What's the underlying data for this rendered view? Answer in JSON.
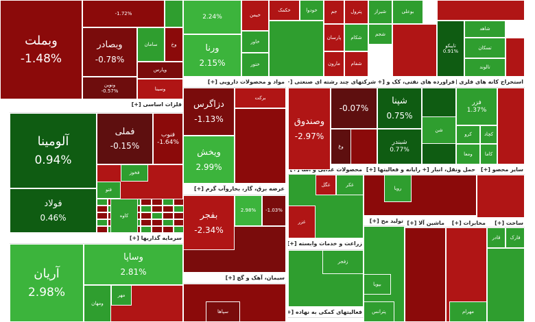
{
  "headers": [
    "فلزات اساسی [+]",
    "سرمایه گذاریها [+]",
    "مواد و محصولات دارویی [+]",
    "شرکتهای چند رشته ای صنعتی [+]",
    "فراورده های نفتی، کک و [+]",
    "استخراج کانه های فلزی [+]",
    "عرضه برق، گاز، بخاروآب گرم [+]",
    "محصولات غذایی و آشا [+]",
    "رایانه و فعالیتها [+]",
    "حمل ونقل، انبار [+]",
    "سایر محصو [+]",
    "زراعت و خدمات وابسته [+]",
    "تولید مح [+]",
    "ماشین آلا [+]",
    "مخابرات [+]",
    "ساخت [+]",
    "سیمان، آهک و گچ [+]",
    "فعالیتهای کمکی به نهاده [+]"
  ],
  "tiles": [
    {
      "name": "وبملت",
      "change": "-1.48%",
      "color": "#8b0a0a"
    },
    {
      "name": "",
      "change": "-1.72%",
      "color": "#8b0a0a"
    },
    {
      "name": "وبصادر",
      "change": "-0.78%",
      "color": "#7a0c0c"
    },
    {
      "name": "سامان",
      "color": "#2f9e2f"
    },
    {
      "name": "وخ",
      "color": "#8b0a0a"
    },
    {
      "name": "وپارس",
      "color": "#7a0c0c"
    },
    {
      "name": "ونوین",
      "change": "-0.57%",
      "color": "#6e0d0d"
    },
    {
      "name": "وسینا",
      "color": "#b01515"
    },
    {
      "name": "آلومینا",
      "change": "0.94%",
      "color": "#0f5c12"
    },
    {
      "name": "فولاد",
      "change": "0.46%",
      "color": "#0f5c12"
    },
    {
      "name": "فملی",
      "change": "-0.15%",
      "color": "#5e0f0f"
    },
    {
      "name": "فنوب",
      "change": "-1.64%",
      "color": "#8b0a0a"
    },
    {
      "name": "فخوز",
      "color": "#2f9e2f"
    },
    {
      "name": "فتو",
      "color": "#2f9e2f"
    },
    {
      "name": "کاوه",
      "color": "#2f9e2f"
    },
    {
      "name": "آریان",
      "change": "2.98%",
      "color": "#3cb43c"
    },
    {
      "name": "وساپا",
      "change": "2.81%",
      "color": "#3cb43c"
    },
    {
      "name": "ومهان",
      "color": "#2f9e2f"
    },
    {
      "name": "مهر",
      "color": "#2f9e2f"
    },
    {
      "name": "",
      "change": "2.24%",
      "color": "#3cb43c"
    },
    {
      "name": "ورنا",
      "change": "2.15%",
      "color": "#3cb43c"
    },
    {
      "name": "خیمن",
      "color": "#b01515"
    },
    {
      "name": "خکمک",
      "color": "#b01515"
    },
    {
      "name": "خاور",
      "color": "#2f9e2f"
    },
    {
      "name": "ختور",
      "color": "#2f9e2f"
    },
    {
      "name": "خودوا",
      "color": "#2f9e2f"
    },
    {
      "name": "جم",
      "color": "#b01515"
    },
    {
      "name": "پترول",
      "color": "#b01515"
    },
    {
      "name": "شیراز",
      "color": "#2f9e2f"
    },
    {
      "name": "بوعلی",
      "color": "#2f9e2f"
    },
    {
      "name": "پارسان",
      "color": "#b01515"
    },
    {
      "name": "شکام",
      "color": "#2f9e2f"
    },
    {
      "name": "شجم",
      "color": "#2f9e2f"
    },
    {
      "name": "مارون",
      "color": "#b01515"
    },
    {
      "name": "شفام",
      "color": "#b01515"
    },
    {
      "name": "تاپیکو",
      "change": "0.91%",
      "color": "#0f5c12"
    },
    {
      "name": "شاهد",
      "color": "#2f9e2f"
    },
    {
      "name": "تسکان",
      "color": "#2f9e2f"
    },
    {
      "name": "تالوند",
      "color": "#2f9e2f"
    },
    {
      "name": "دزاگرس",
      "change": "-1.13%",
      "color": "#7a0c0c"
    },
    {
      "name": "ویخش",
      "change": "2.99%",
      "color": "#3cb43c"
    },
    {
      "name": "برکت",
      "color": "#b01515"
    },
    {
      "name": "وصندوق",
      "change": "-2.97%",
      "color": "#b01515"
    },
    {
      "name": "",
      "change": "-0.07%",
      "color": "#5e0f0f"
    },
    {
      "name": "وغ",
      "color": "#5e0f0f"
    },
    {
      "name": "شپنا",
      "change": "0.75%",
      "color": "#0f5c12"
    },
    {
      "name": "شبندر",
      "change": "0.77%",
      "color": "#0f5c12"
    },
    {
      "name": "شن",
      "color": "#2f9e2f"
    },
    {
      "name": "فزر",
      "change": "1.37%",
      "color": "#2f9e2f"
    },
    {
      "name": "کرو",
      "color": "#2f9e2f"
    },
    {
      "name": "کچاد",
      "color": "#2f9e2f"
    },
    {
      "name": "ومعا",
      "color": "#2f9e2f"
    },
    {
      "name": "کاما",
      "color": "#2f9e2f"
    },
    {
      "name": "بفجر",
      "change": "-2.34%",
      "color": "#b01515"
    },
    {
      "name": "",
      "change": "2.98%",
      "color": "#3cb43c"
    },
    {
      "name": "",
      "change": "-1.03%",
      "color": "#7a0c0c"
    },
    {
      "name": "غکر",
      "color": "#2f9e2f"
    },
    {
      "name": "غگل",
      "color": "#b01515"
    },
    {
      "name": "غزر",
      "color": "#b01515"
    },
    {
      "name": "رویا",
      "color": "#2f9e2f"
    },
    {
      "name": "زفجر",
      "color": "#2f9e2f"
    },
    {
      "name": "قادر",
      "color": "#2f9e2f"
    },
    {
      "name": "فارک",
      "color": "#2f9e2f"
    },
    {
      "name": "بپویا",
      "color": "#2f9e2f"
    },
    {
      "name": "پترانس",
      "color": "#2f9e2f"
    },
    {
      "name": "مهرام",
      "color": "#2f9e2f"
    },
    {
      "name": "سپاها",
      "color": "#7a0c0c"
    }
  ]
}
